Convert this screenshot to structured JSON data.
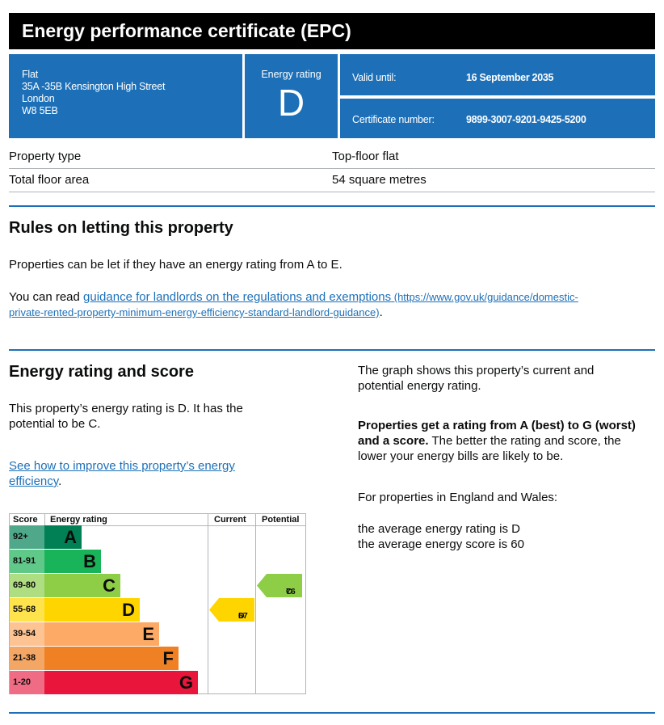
{
  "title": "Energy performance certificate (EPC)",
  "address": {
    "line1": "Flat",
    "line2": "35A -35B Kensington High Street",
    "line3": "London",
    "line4": "W8 5EB"
  },
  "energy_rating": {
    "label": "Energy rating",
    "value": "D"
  },
  "valid_until": {
    "label": "Valid until:",
    "value": "16 September 2035"
  },
  "certificate_number": {
    "label": "Certificate number:",
    "value": "9899-3007-9201-9425-5200"
  },
  "property": {
    "type_label": "Property type",
    "type_value": "Top-floor flat",
    "area_label": "Total floor area",
    "area_value": "54 square metres"
  },
  "rules": {
    "heading": "Rules on letting this property",
    "para1": "Properties can be let if they have an energy rating from A to E.",
    "para2_prefix": "You can read ",
    "para2_link": "guidance for landlords on the regulations and exemptions",
    "para2_url_1": " (https://www.gov.uk/guidance/domestic-",
    "para2_url_2": "private-rented-property-minimum-energy-efficiency-standard-landlord-guidance)",
    "para2_suffix": "."
  },
  "rating_score": {
    "heading": "Energy rating and score",
    "para1_line1": "This property’s energy rating is D. It has the",
    "para1_line2": "potential to be C.",
    "link_line1": "See how to improve this property’s energy",
    "link_line2": "efficiency",
    "link_suffix": "."
  },
  "right_col": {
    "p1_line1": "The graph shows this property’s current and",
    "p1_line2": "potential energy rating.",
    "p2_bold_line1": "Properties get a rating from A (best) to G (worst)",
    "p2_bold_line2": "and a score.",
    "p2_rest_line2": " The better the rating and score, the",
    "p2_line3": "lower your energy bills are likely to be.",
    "p3": "For properties in England and Wales:",
    "p4_line1": "the average energy rating is D",
    "p4_line2": "the average energy score is 60"
  },
  "graph": {
    "headers": {
      "score": "Score",
      "rating": "Energy rating",
      "current": "Current",
      "potential": "Potential"
    },
    "bands": [
      {
        "score": "92+",
        "letter": "A",
        "color": "#008054",
        "score_bg": "#4fa88a"
      },
      {
        "score": "81-91",
        "letter": "B",
        "color": "#19b459",
        "score_bg": "#60c98a"
      },
      {
        "score": "69-80",
        "letter": "C",
        "color": "#8dce46",
        "score_bg": "#afdd81"
      },
      {
        "score": "55-68",
        "letter": "D",
        "color": "#ffd500",
        "score_bg": "#ffe34d"
      },
      {
        "score": "39-54",
        "letter": "E",
        "color": "#fcaa65",
        "score_bg": "#fdc393"
      },
      {
        "score": "21-38",
        "letter": "F",
        "color": "#ef8023",
        "score_bg": "#f4a665"
      },
      {
        "score": "1-20",
        "letter": "G",
        "color": "#e9153b",
        "score_bg": "#f06c84"
      }
    ],
    "current": {
      "score": "67",
      "letter": "D",
      "color": "#ffd500"
    },
    "potential": {
      "score": "76",
      "letter": "C",
      "color": "#8dce46"
    }
  }
}
